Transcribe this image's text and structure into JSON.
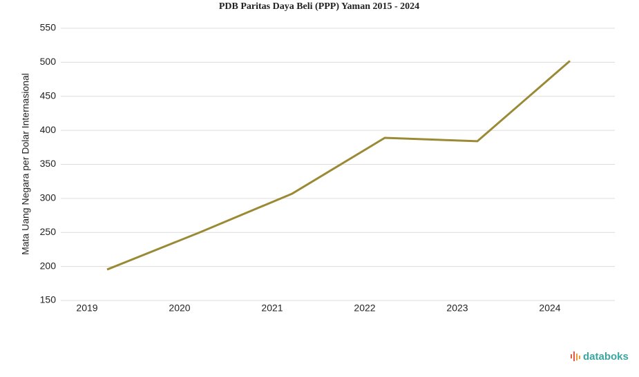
{
  "chart_data": {
    "type": "line",
    "title": "PDB Paritas Daya Beli (PPP) Yaman 2015 - 2024",
    "y_label": "Mata Uang Negara per Dolar Internasional",
    "categories": [
      "2019",
      "2020",
      "2021",
      "2022",
      "2023",
      "2024"
    ],
    "series": [
      {
        "name": "Yaman",
        "color": "#9a8a35",
        "values": [
          195.5,
          250,
          307,
          389,
          384,
          502
        ]
      }
    ],
    "ylim": [
      150,
      550
    ],
    "yticks": [
      150,
      200,
      250,
      300,
      350,
      400,
      450,
      500,
      550
    ],
    "grid": true,
    "watermark": "databoks"
  }
}
